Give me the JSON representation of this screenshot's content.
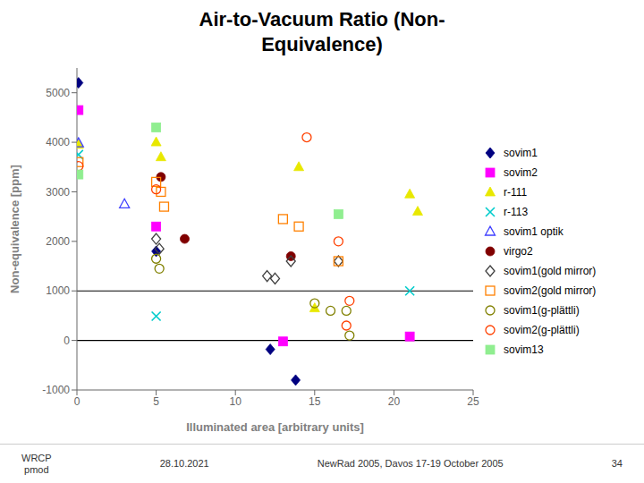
{
  "chart_data": {
    "type": "scatter",
    "title": "Air-to-Vacuum Ratio (Non-\nEquivalence)",
    "x_label": "Illuminated area [arbitrary units]",
    "y_label": "Non-equivalence [ppm]",
    "xlim": [
      0,
      25
    ],
    "ylim": [
      -1000,
      5500
    ],
    "xticks": [
      0,
      5,
      10,
      15,
      20,
      25
    ],
    "yticks": [
      -1000,
      0,
      1000,
      2000,
      3000,
      4000,
      5000
    ],
    "grid": false,
    "legend": "right",
    "hlines": [
      0,
      1000
    ],
    "annotations": [
      "WRCP\npmod",
      "28.10.2021",
      "NewRad 2005, Davos 17-19 October 2005",
      "34"
    ],
    "series": [
      {
        "name": "sovim1",
        "color": "#000080",
        "marker": "diamond",
        "x": [
          0.1,
          5.0,
          12.2,
          13.8
        ],
        "values": [
          5200,
          1800,
          -180,
          -800
        ]
      },
      {
        "name": "sovim2",
        "color": "#ff00ff",
        "marker": "square",
        "x": [
          0.1,
          5.0,
          13.0,
          21.0
        ],
        "values": [
          4650,
          2300,
          -20,
          80
        ]
      },
      {
        "name": "r-111",
        "color": "#e8e800",
        "marker": "triangle",
        "x": [
          0.1,
          5.0,
          5.3,
          14.0,
          15.0,
          21.0,
          21.5
        ],
        "values": [
          3950,
          4000,
          3700,
          3500,
          650,
          2950,
          2600
        ]
      },
      {
        "name": "r-113",
        "color": "#00cccc",
        "marker": "cross",
        "x": [
          0.1,
          5.0,
          21.0
        ],
        "values": [
          3750,
          490,
          1000
        ]
      },
      {
        "name": "sovim1 optik",
        "color": "#4040ff",
        "marker": "triangle-open",
        "x": [
          0.1,
          3.0
        ],
        "values": [
          3980,
          2750
        ]
      },
      {
        "name": "virgo2",
        "color": "#800000",
        "marker": "circle",
        "x": [
          5.3,
          6.8,
          13.5
        ],
        "values": [
          3300,
          2050,
          1700
        ]
      },
      {
        "name": "sovim1(gold mirror)",
        "color": "#404040",
        "marker": "diamond-open",
        "x": [
          5.0,
          5.2,
          12.0,
          12.5,
          13.5,
          16.5
        ],
        "values": [
          2050,
          1850,
          1300,
          1250,
          1600,
          1600
        ]
      },
      {
        "name": "sovim2(gold mirror)",
        "color": "#ff8000",
        "marker": "square-open",
        "x": [
          0.1,
          5.0,
          5.3,
          5.5,
          13.0,
          14.0,
          16.5
        ],
        "values": [
          3600,
          3200,
          3000,
          2700,
          2450,
          2300,
          1600
        ]
      },
      {
        "name": "sovim1(g-plättli)",
        "color": "#808000",
        "marker": "circle-open",
        "x": [
          5.0,
          5.2,
          15.0,
          16.0,
          17.0,
          17.2
        ],
        "values": [
          1650,
          1450,
          750,
          600,
          600,
          100
        ]
      },
      {
        "name": "sovim2(g-plättli)",
        "color": "#ff4000",
        "marker": "circle-open",
        "x": [
          0.1,
          5.0,
          14.5,
          16.5,
          17.0,
          17.2
        ],
        "values": [
          3520,
          3050,
          4100,
          2000,
          300,
          800
        ]
      },
      {
        "name": "sovim13",
        "color": "#90ee90",
        "marker": "square",
        "x": [
          0.1,
          5.0,
          16.5
        ],
        "values": [
          3350,
          4300,
          2550
        ]
      }
    ]
  }
}
